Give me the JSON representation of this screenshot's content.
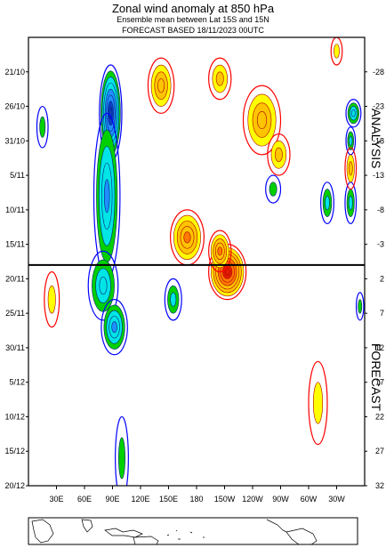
{
  "header": {
    "title": "Zonal wind anomaly at 850 hPa",
    "subtitle": "Ensemble mean between  Lat 15S and 15N",
    "forecast_line": "FORECAST  BASED 18/11/2023 00UTC"
  },
  "chart_data": {
    "type": "heatmap",
    "title": "Zonal wind anomaly at 850 hPa",
    "subtitle": "Ensemble mean between  Lat 15S and 15N",
    "x_tick_labels": [
      "30E",
      "60E",
      "90E",
      "120E",
      "150E",
      "180",
      "150W",
      "120W",
      "90W",
      "60W",
      "30W"
    ],
    "x_tick_lon": [
      30,
      60,
      90,
      120,
      150,
      180,
      210,
      240,
      270,
      300,
      330
    ],
    "xlim_lon": [
      0,
      360
    ],
    "y_left_labels": [
      "21/10",
      "26/10",
      "31/10",
      "5/11",
      "10/11",
      "15/11",
      "20/11",
      "25/11",
      "30/11",
      "5/12",
      "10/12",
      "15/12",
      "20/12"
    ],
    "y_left_days": [
      -28,
      -23,
      -18,
      -13,
      -8,
      -3,
      2,
      7,
      12,
      17,
      22,
      27,
      32
    ],
    "y_right_labels": [
      "-28",
      "-23",
      "-18",
      "-13",
      "-8",
      "-3",
      "2",
      "7",
      "12",
      "17",
      "22",
      "27",
      "32"
    ],
    "ylim_days": [
      -33,
      32
    ],
    "analysis_forecast_boundary_day": 0,
    "section_labels": {
      "analysis": "ANALYSIS",
      "forecast": "FORECAST"
    },
    "contour_levels_mps": [
      -8,
      -7,
      -6,
      -5,
      -4,
      -3,
      -2,
      -1,
      1,
      2,
      3,
      4,
      5,
      6,
      7,
      8
    ],
    "colors": {
      "neg_strong": "#0a3fc2",
      "neg_mid": "#1f8fff",
      "neg_light": "#00e5e5",
      "neg_weak": "#00d000",
      "neg_line": "#0000ff",
      "pos_weak": "#ffff00",
      "pos_light": "#ffc400",
      "pos_mid": "#ff7a00",
      "pos_strong": "#e01e00",
      "pos_line": "#ff0000",
      "boundary": "#000000"
    },
    "features": [
      {
        "sign": "negative",
        "peak": -8,
        "lon": 88,
        "day": -22,
        "lon_half_width": 12,
        "day_half_width": 7
      },
      {
        "sign": "negative",
        "peak": -5,
        "lon": 84,
        "day": -10,
        "lon_half_width": 14,
        "day_half_width": 12
      },
      {
        "sign": "negative",
        "peak": -4,
        "lon": 80,
        "day": 3,
        "lon_half_width": 16,
        "day_half_width": 5
      },
      {
        "sign": "negative",
        "peak": -5,
        "lon": 92,
        "day": 9,
        "lon_half_width": 14,
        "day_half_width": 4
      },
      {
        "sign": "negative",
        "peak": -3,
        "lon": 155,
        "day": 5,
        "lon_half_width": 9,
        "day_half_width": 3
      },
      {
        "sign": "negative",
        "peak": -2,
        "lon": 100,
        "day": 28,
        "lon_half_width": 7,
        "day_half_width": 6
      },
      {
        "sign": "negative",
        "peak": -4,
        "lon": 348,
        "day": -22,
        "lon_half_width": 8,
        "day_half_width": 2
      },
      {
        "sign": "negative",
        "peak": -3,
        "lon": 345,
        "day": -18,
        "lon_half_width": 5,
        "day_half_width": 2
      },
      {
        "sign": "negative",
        "peak": -3,
        "lon": 320,
        "day": -9,
        "lon_half_width": 7,
        "day_half_width": 3
      },
      {
        "sign": "negative",
        "peak": -3,
        "lon": 345,
        "day": -9,
        "lon_half_width": 6,
        "day_half_width": 3
      },
      {
        "sign": "negative",
        "peak": -2,
        "lon": 262,
        "day": -11,
        "lon_half_width": 8,
        "day_half_width": 2
      },
      {
        "sign": "negative",
        "peak": -2,
        "lon": 15,
        "day": -20,
        "lon_half_width": 6,
        "day_half_width": 3
      },
      {
        "sign": "negative",
        "peak": -2,
        "lon": 355,
        "day": 6,
        "lon_half_width": 4,
        "day_half_width": 2
      },
      {
        "sign": "positive",
        "peak": 5,
        "lon": 170,
        "day": -4,
        "lon_half_width": 18,
        "day_half_width": 4
      },
      {
        "sign": "positive",
        "peak": 8,
        "lon": 213,
        "day": 1,
        "lon_half_width": 20,
        "day_half_width": 4
      },
      {
        "sign": "positive",
        "peak": 5,
        "lon": 205,
        "day": -2,
        "lon_half_width": 12,
        "day_half_width": 3
      },
      {
        "sign": "positive",
        "peak": 4,
        "lon": 142,
        "day": -26,
        "lon_half_width": 14,
        "day_half_width": 4
      },
      {
        "sign": "positive",
        "peak": 4,
        "lon": 250,
        "day": -21,
        "lon_half_width": 20,
        "day_half_width": 5
      },
      {
        "sign": "positive",
        "peak": 3,
        "lon": 205,
        "day": -27,
        "lon_half_width": 12,
        "day_half_width": 3
      },
      {
        "sign": "positive",
        "peak": 3,
        "lon": 268,
        "day": -16,
        "lon_half_width": 12,
        "day_half_width": 3
      },
      {
        "sign": "positive",
        "peak": 3,
        "lon": 345,
        "day": -14,
        "lon_half_width": 6,
        "day_half_width": 3
      },
      {
        "sign": "positive",
        "peak": 2,
        "lon": 330,
        "day": -31,
        "lon_half_width": 6,
        "day_half_width": 2
      },
      {
        "sign": "positive",
        "peak": 2,
        "lon": 310,
        "day": 20,
        "lon_half_width": 10,
        "day_half_width": 6
      },
      {
        "sign": "positive",
        "peak": 2,
        "lon": 25,
        "day": 5,
        "lon_half_width": 8,
        "day_half_width": 4
      }
    ]
  }
}
